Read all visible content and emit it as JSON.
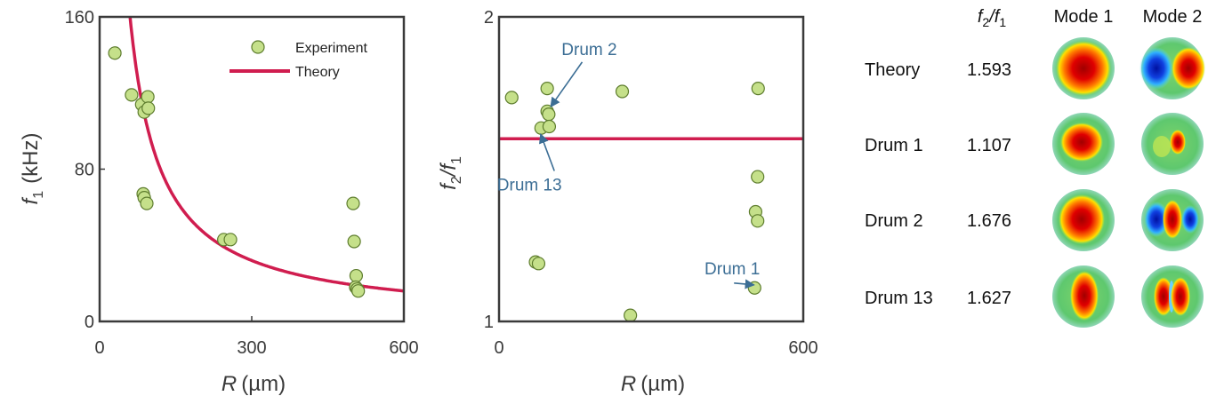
{
  "chart_data": [
    {
      "type": "scatter",
      "xlabel_symbol": "R",
      "xlabel_unit": "(µm)",
      "ylabel_symbol": "f",
      "ylabel_sub": "1",
      "ylabel_unit": "(kHz)",
      "xlim": [
        0,
        600
      ],
      "ylim": [
        0,
        160
      ],
      "x_ticks": [
        "0",
        "300",
        "600"
      ],
      "y_ticks": [
        "0",
        "80",
        "160"
      ],
      "legend_position": "top-right",
      "series": [
        {
          "name": "Experiment",
          "kind": "markers",
          "x": [
            30,
            63,
            83,
            88,
            95,
            96,
            86,
            88,
            93,
            245,
            258,
            500,
            502,
            506,
            505,
            508,
            510
          ],
          "y": [
            141,
            119,
            114,
            110,
            118,
            112,
            67,
            65,
            62,
            43,
            43,
            62,
            42,
            24,
            18,
            17,
            16
          ]
        },
        {
          "name": "Theory",
          "kind": "line",
          "formula": "y = 9600 / x",
          "x": [
            60,
            70,
            80,
            90,
            100,
            120,
            150,
            180,
            200,
            250,
            300,
            350,
            400,
            450,
            500,
            550,
            600
          ],
          "y": [
            160,
            137.1,
            120,
            106.7,
            96,
            80,
            64,
            53.3,
            48,
            38.4,
            32,
            27.4,
            24,
            21.3,
            19.2,
            17.5,
            16
          ]
        }
      ]
    },
    {
      "type": "scatter",
      "xlabel_symbol": "R",
      "xlabel_unit": "(µm)",
      "ylabel_html": [
        "f",
        "2",
        "/f",
        "1"
      ],
      "xlim": [
        0,
        600
      ],
      "ylim": [
        1,
        2
      ],
      "x_ticks": [
        "0",
        "600"
      ],
      "y_ticks": [
        "1",
        "2"
      ],
      "series": [
        {
          "kind": "markers",
          "x": [
            25,
            72,
            78,
            95,
            95,
            98,
            83,
            99,
            243,
            511,
            510,
            506,
            510,
            504,
            259
          ],
          "y": [
            1.735,
            1.195,
            1.19,
            1.765,
            1.69,
            1.68,
            1.635,
            1.64,
            1.755,
            1.765,
            1.475,
            1.36,
            1.33,
            1.11,
            1.02
          ]
        },
        {
          "kind": "hline",
          "y": 1.6
        }
      ],
      "annotations": [
        {
          "text": "Drum 2",
          "from": [
            178,
            1.875
          ],
          "to": [
            102,
            1.705
          ]
        },
        {
          "text": "Drum 13",
          "from": [
            60,
            1.43
          ],
          "to": [
            82,
            1.615
          ]
        },
        {
          "text": "Drum 1",
          "from": [
            460,
            1.155
          ],
          "to": [
            503,
            1.12
          ]
        }
      ]
    }
  ],
  "table": {
    "headers": {
      "ratio": [
        "f",
        "2",
        "/f",
        "1"
      ],
      "mode1": "Mode 1",
      "mode2": "Mode 2"
    },
    "rows": [
      {
        "label": "Theory",
        "value": "1.593"
      },
      {
        "label": "Drum 1",
        "value": "1.107"
      },
      {
        "label": "Drum 2",
        "value": "1.676"
      },
      {
        "label": "Drum 13",
        "value": "1.627"
      }
    ]
  },
  "colors": {
    "marker_fill": "#c5e08a",
    "marker_edge": "#5e7d2e",
    "theory_line": "#d01d4f",
    "annotation": "#3c6e95",
    "axis": "#3a3a3a",
    "mode_background": "#5ec86e",
    "mode_positive": "#c00000",
    "mode_negative": "#1030c8"
  }
}
